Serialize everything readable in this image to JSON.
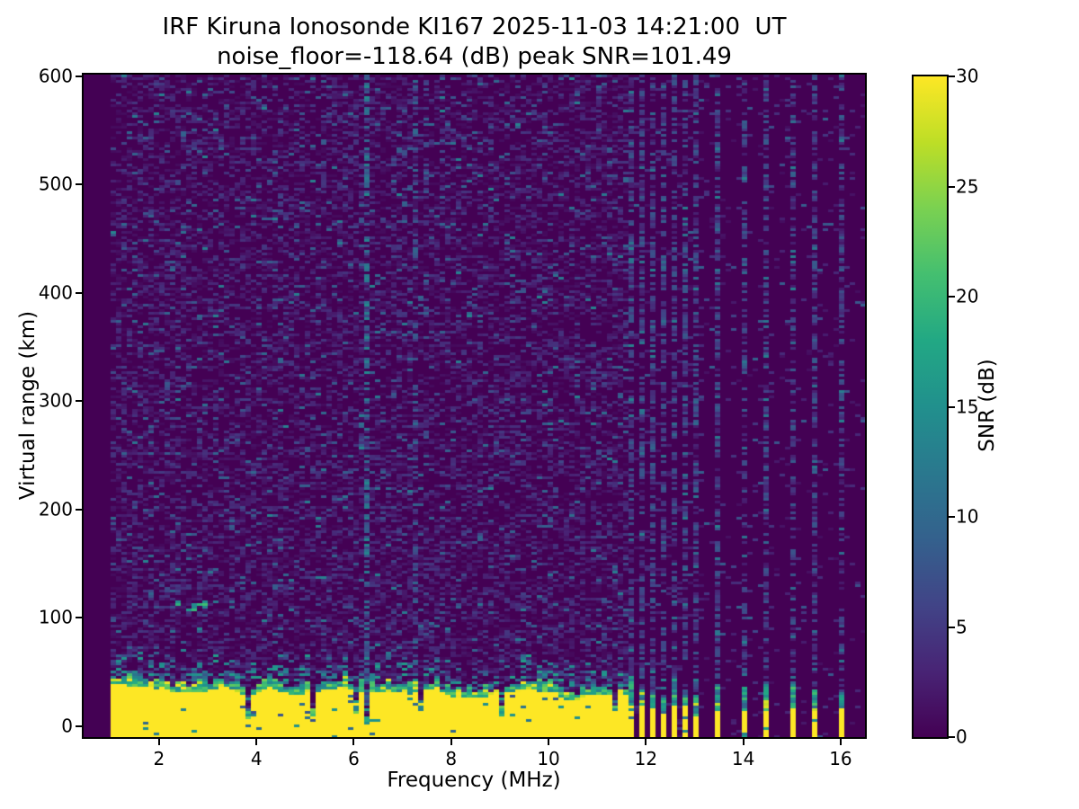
{
  "chart_data": {
    "type": "heatmap",
    "title": "IRF Kiruna Ionosonde KI167 2025-11-03 14:21:00  UT",
    "subtitle": "noise_floor=-118.64 (dB) peak SNR=101.49",
    "station": "IRF Kiruna Ionosonde KI167",
    "timestamp_ut": "2025-11-03 14:21:00",
    "noise_floor_db": -118.64,
    "peak_snr_db": 101.49,
    "xlabel": "Frequency (MHz)",
    "ylabel": "Virtual range (km)",
    "x_ticks": [
      2,
      4,
      6,
      8,
      10,
      12,
      14,
      16
    ],
    "y_ticks": [
      0,
      100,
      200,
      300,
      400,
      500,
      600
    ],
    "x_range_mhz": [
      0.45,
      16.5
    ],
    "y_range_km": [
      -10.3,
      601.5
    ],
    "colorbar": {
      "label": "SNR (dB)",
      "ticks": [
        0,
        5,
        10,
        15,
        20,
        25,
        30
      ],
      "range_db": [
        0,
        30
      ],
      "colormap": "viridis",
      "stops": [
        [
          0.0,
          "#440154"
        ],
        [
          0.1,
          "#482475"
        ],
        [
          0.2,
          "#414487"
        ],
        [
          0.3,
          "#34618d"
        ],
        [
          0.4,
          "#2a788e"
        ],
        [
          0.5,
          "#21908d"
        ],
        [
          0.6,
          "#22a884"
        ],
        [
          0.7,
          "#44bf70"
        ],
        [
          0.8,
          "#7ad151"
        ],
        [
          0.9,
          "#bdde26"
        ],
        [
          1.0,
          "#fde725"
        ]
      ]
    },
    "features": {
      "sweep_start_mhz": 1.0,
      "ground_echo_band": {
        "freq_range_mhz": [
          1.0,
          11.63
        ],
        "snr_db": 30,
        "top_edge_km": [
          15,
          35
        ],
        "notch_probability": 0.1,
        "description": "saturated near-range echo, yellow to ~30 dB, ragged teal top edge with narrow absorption notches"
      },
      "discrete_echo_stripes_mhz": [
        11.72,
        11.94,
        12.16,
        12.38,
        12.58,
        12.78,
        13.0,
        13.5,
        14.0,
        14.5,
        15.0,
        15.5,
        15.97
      ],
      "interference_lines": [
        {
          "freq_mhz": 6.3,
          "strength": 1.0
        },
        {
          "freq_mhz": 7.25,
          "strength": 0.45
        },
        {
          "freq_mhz": 7.45,
          "strength": 0.3
        }
      ],
      "e_region_echo": {
        "freq_range_mhz": [
          2.35,
          3.05
        ],
        "virtual_range_km": [
          106,
          116
        ],
        "snr_db": [
          13,
          22
        ]
      },
      "background_noise": {
        "snr_db_range": [
          0,
          12
        ],
        "seed": 20251103
      }
    }
  }
}
